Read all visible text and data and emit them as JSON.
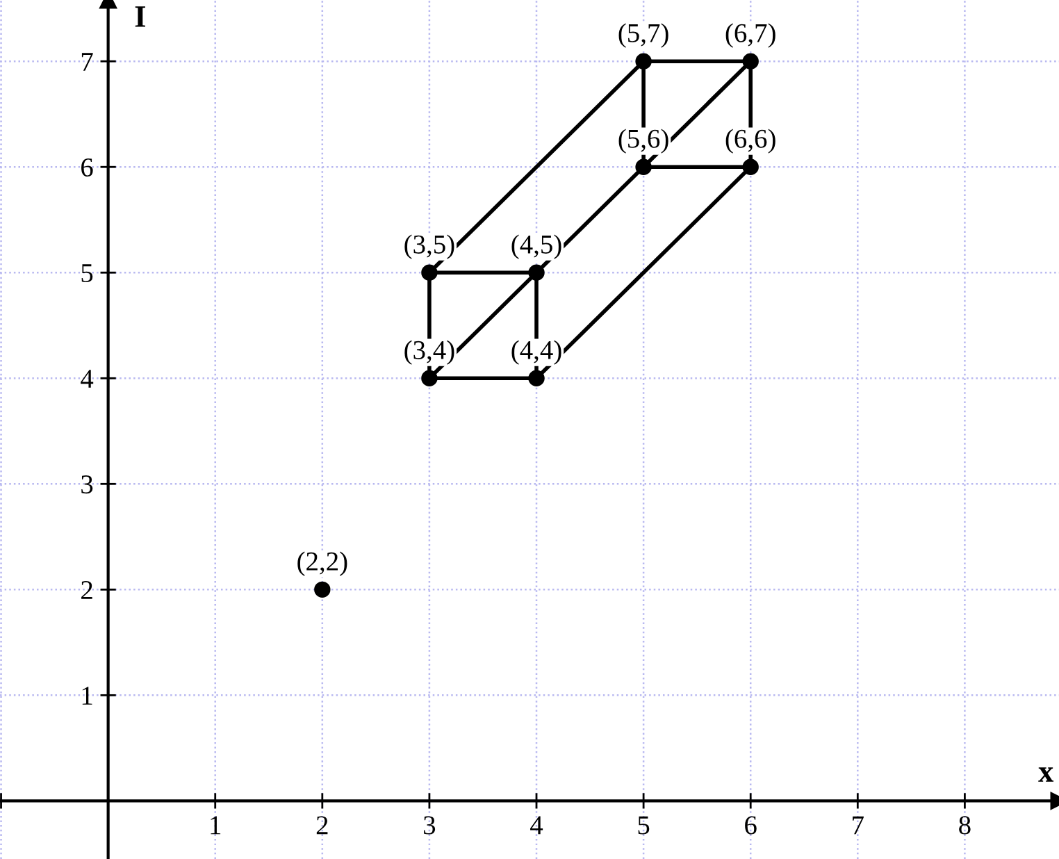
{
  "chart_data": {
    "type": "scatter",
    "xlabel": "x",
    "ylabel": "I",
    "xlim": [
      -1.01,
      8.88
    ],
    "ylim": [
      -0.55,
      7.58
    ],
    "xticks": [
      {
        "value": -1,
        "label": null
      },
      1,
      2,
      3,
      4,
      5,
      6,
      7,
      8
    ],
    "yticks": [
      1,
      2,
      3,
      4,
      5,
      6,
      7
    ],
    "grid": true,
    "legend": false,
    "series": [
      {
        "type": "line",
        "color": "#000000",
        "x": [
          3,
          4,
          4,
          3,
          3,
          null,
          5,
          6,
          6,
          5,
          5,
          null,
          3,
          4,
          5,
          6,
          null,
          4,
          6,
          null,
          3,
          5
        ],
        "values": [
          4,
          4,
          5,
          5,
          4,
          null,
          6,
          6,
          7,
          7,
          6,
          null,
          4,
          5,
          6,
          7,
          null,
          4,
          6,
          null,
          5,
          7
        ]
      },
      {
        "color": "#000000",
        "marker": "circle",
        "x": [
          2,
          3,
          4,
          3,
          4,
          5,
          6,
          5,
          6
        ],
        "values": [
          2,
          4,
          4,
          5,
          5,
          6,
          6,
          7,
          7
        ]
      }
    ],
    "annotations": [
      {
        "text": "(2,2)",
        "x": 2,
        "y": 2
      },
      {
        "text": "(3,4)",
        "x": 3,
        "y": 4
      },
      {
        "text": "(4,4)",
        "x": 4,
        "y": 4
      },
      {
        "text": "(3,5)",
        "x": 3,
        "y": 5
      },
      {
        "text": "(4,5)",
        "x": 4,
        "y": 5
      },
      {
        "text": "(5,6)",
        "x": 5,
        "y": 6
      },
      {
        "text": "(6,6)",
        "x": 6,
        "y": 6
      },
      {
        "text": "(5,7)",
        "x": 5,
        "y": 7
      },
      {
        "text": "(6,7)",
        "x": 6,
        "y": 7
      }
    ]
  }
}
